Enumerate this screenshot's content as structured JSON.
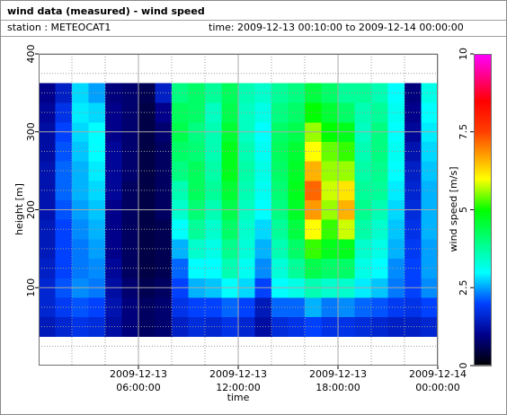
{
  "chart_data": {
    "type": "heatmap",
    "title": "wind data (measured) - wind speed",
    "station": "station : METEOCAT1",
    "time_range": "time: 2009-12-13 00:10:00 to 2009-12-14 00:00:00",
    "xlabel": "time",
    "ylabel": "height [m]",
    "colorbar_label": "wind speed [m/s]",
    "xlim": [
      "2009-12-13 00:00:00",
      "2009-12-14 00:00:00"
    ],
    "xticks": [
      "2009-12-13 06:00:00",
      "2009-12-13 12:00:00",
      "2009-12-13 18:00:00",
      "2009-12-14 00:00:00"
    ],
    "xminorticks": [
      "2009-12-13 02:00:00",
      "2009-12-13 04:00:00",
      "2009-12-13 08:00:00",
      "2009-12-13 10:00:00",
      "2009-12-13 14:00:00",
      "2009-12-13 16:00:00",
      "2009-12-13 20:00:00",
      "2009-12-13 22:00:00"
    ],
    "ylim": [
      0,
      400
    ],
    "yticks": [
      100,
      200,
      300,
      400
    ],
    "yminorticks": [
      25,
      50,
      75,
      125,
      150,
      175,
      225,
      250,
      275,
      325,
      350,
      375
    ],
    "zlim": [
      0,
      10
    ],
    "zticks": [
      0,
      2.5,
      5,
      7.5,
      10
    ],
    "colormap": [
      [
        0,
        "#000000"
      ],
      [
        1,
        "#00008b"
      ],
      [
        2,
        "#0040ff"
      ],
      [
        3,
        "#00ffff"
      ],
      [
        4,
        "#00ff80"
      ],
      [
        5,
        "#00ff00"
      ],
      [
        6,
        "#ffff00"
      ],
      [
        7.5,
        "#ff4000"
      ],
      [
        8.5,
        "#ff0000"
      ],
      [
        10,
        "#ff00ff"
      ]
    ],
    "grid": true,
    "x": [
      "2009-12-13 00:30:00",
      "2009-12-13 01:30:00",
      "2009-12-13 02:30:00",
      "2009-12-13 03:30:00",
      "2009-12-13 04:30:00",
      "2009-12-13 05:30:00",
      "2009-12-13 06:30:00",
      "2009-12-13 07:30:00",
      "2009-12-13 08:30:00",
      "2009-12-13 09:30:00",
      "2009-12-13 10:30:00",
      "2009-12-13 11:30:00",
      "2009-12-13 12:30:00",
      "2009-12-13 13:30:00",
      "2009-12-13 14:30:00",
      "2009-12-13 15:30:00",
      "2009-12-13 16:30:00",
      "2009-12-13 17:30:00",
      "2009-12-13 18:30:00",
      "2009-12-13 19:30:00",
      "2009-12-13 20:30:00",
      "2009-12-13 21:30:00",
      "2009-12-13 22:30:00",
      "2009-12-13 23:30:00"
    ],
    "y": [
      50,
      75,
      100,
      125,
      150,
      175,
      200,
      225,
      250,
      275,
      300,
      325,
      350
    ],
    "values": [
      [
        1.4,
        1.6,
        1.8,
        1.7,
        1.2,
        0.9,
        0.7,
        0.8,
        1.5,
        1.7,
        1.6,
        1.8,
        1.6,
        1.2,
        1.7,
        1.8,
        2.0,
        1.8,
        1.8,
        1.7,
        1.6,
        1.5,
        1.5,
        1.6
      ],
      [
        1.6,
        1.9,
        2.1,
        2.0,
        1.3,
        0.9,
        0.7,
        0.8,
        1.8,
        2.0,
        2.0,
        2.2,
        2.0,
        1.4,
        2.2,
        2.2,
        2.6,
        2.3,
        2.4,
        2.2,
        2.1,
        1.9,
        1.8,
        2.0
      ],
      [
        1.6,
        2.1,
        2.4,
        2.3,
        1.2,
        0.8,
        0.6,
        0.7,
        2.0,
        2.6,
        2.7,
        3.0,
        2.8,
        2.0,
        3.0,
        3.2,
        3.6,
        3.4,
        3.4,
        2.9,
        2.7,
        2.3,
        2.0,
        2.4
      ],
      [
        1.5,
        2.0,
        2.3,
        2.4,
        1.1,
        0.7,
        0.5,
        0.6,
        2.2,
        3.0,
        3.0,
        3.6,
        3.1,
        2.4,
        3.3,
        3.8,
        4.4,
        4.2,
        4.2,
        3.2,
        3.0,
        2.4,
        2.0,
        2.5
      ],
      [
        1.4,
        2.0,
        2.3,
        2.5,
        1.0,
        0.7,
        0.5,
        0.6,
        2.6,
        3.4,
        3.2,
        3.9,
        3.3,
        2.6,
        3.6,
        4.2,
        5.2,
        4.8,
        4.8,
        3.4,
        3.2,
        2.6,
        1.9,
        2.5
      ],
      [
        1.4,
        2.0,
        2.4,
        2.6,
        1.0,
        0.7,
        0.5,
        0.6,
        3.0,
        3.8,
        3.4,
        4.2,
        3.4,
        2.8,
        3.8,
        4.5,
        6.0,
        5.2,
        5.8,
        3.7,
        3.4,
        2.7,
        1.8,
        2.6
      ],
      [
        1.3,
        2.1,
        2.5,
        2.7,
        1.0,
        0.7,
        0.5,
        0.7,
        3.4,
        4.1,
        3.6,
        4.4,
        3.5,
        3.0,
        4.0,
        4.7,
        6.8,
        5.6,
        6.6,
        3.9,
        3.6,
        2.8,
        1.7,
        2.6
      ],
      [
        1.3,
        2.2,
        2.6,
        2.8,
        1.1,
        0.7,
        0.5,
        0.7,
        3.6,
        4.3,
        3.8,
        4.6,
        3.6,
        3.1,
        4.1,
        4.8,
        7.2,
        5.8,
        6.2,
        3.8,
        3.8,
        2.9,
        1.6,
        2.6
      ],
      [
        1.3,
        2.2,
        2.6,
        2.9,
        1.1,
        0.8,
        0.5,
        0.7,
        4.0,
        4.3,
        3.7,
        4.8,
        3.7,
        3.2,
        4.2,
        4.7,
        6.6,
        5.6,
        5.6,
        3.7,
        3.9,
        3.0,
        1.5,
        2.7
      ],
      [
        1.2,
        2.1,
        2.7,
        3.0,
        1.1,
        0.8,
        0.5,
        0.7,
        4.2,
        4.1,
        3.6,
        4.8,
        3.6,
        3.1,
        4.3,
        4.6,
        6.0,
        5.4,
        5.2,
        3.6,
        4.0,
        3.1,
        1.3,
        2.8
      ],
      [
        1.2,
        2.0,
        2.8,
        3.0,
        1.0,
        0.8,
        0.5,
        0.8,
        4.4,
        4.0,
        3.6,
        4.6,
        3.5,
        3.0,
        4.2,
        4.4,
        5.6,
        5.0,
        4.8,
        3.5,
        4.0,
        3.0,
        1.1,
        2.9
      ],
      [
        1.1,
        1.8,
        2.9,
        2.8,
        1.0,
        0.8,
        0.5,
        1.0,
        4.3,
        4.2,
        3.5,
        4.4,
        3.5,
        3.2,
        4.0,
        4.2,
        5.0,
        4.6,
        4.2,
        3.6,
        3.8,
        3.1,
        1.0,
        3.0
      ],
      [
        1.0,
        1.5,
        2.8,
        2.5,
        0.9,
        0.8,
        0.6,
        1.5,
        4.0,
        4.2,
        3.8,
        4.3,
        3.6,
        3.4,
        3.8,
        4.0,
        4.5,
        4.2,
        3.8,
        3.8,
        3.6,
        3.0,
        0.9,
        3.2
      ]
    ]
  }
}
